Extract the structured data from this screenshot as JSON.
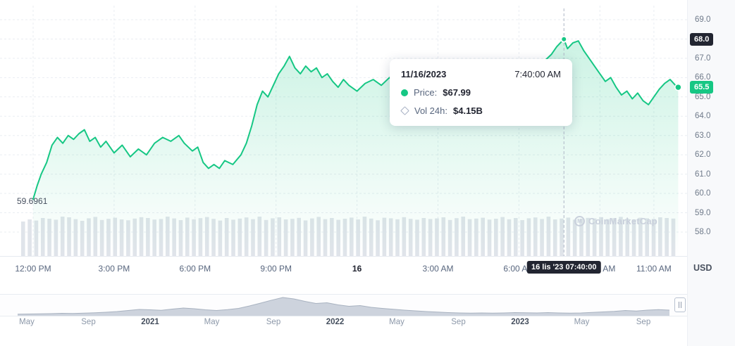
{
  "widget": {
    "currency_label": "USD"
  },
  "tooltip": {
    "date": "11/16/2023",
    "time": "7:40:00 AM",
    "price_label": "Price:",
    "price_value": "$67.99",
    "vol_label": "Vol 24h:",
    "vol_value": "$4.15B"
  },
  "badges": {
    "crosshair_price": "68.0",
    "last_price": "65.5",
    "crosshair_time": "16 lis '23 07:40:00"
  },
  "annotations": {
    "start_price": "59.6961"
  },
  "watermark": {
    "text": "CoinMarketCap",
    "logo_letter": "M"
  },
  "colors": {
    "accent_green": "#16c784",
    "badge_dark": "#222531",
    "grid": "#e9edf2",
    "axis_text": "#58667e",
    "volume_bar": "#e0e4ea",
    "navigator_fill": "#c4cbd7"
  },
  "chart_data": [
    {
      "type": "area",
      "name": "price",
      "title": "",
      "xlabel": "",
      "ylabel": "USD",
      "x_unit": "hours since 2023-11-15 12:00 PM",
      "ylim": [
        56.7,
        69.7
      ],
      "grid": "dashed",
      "legend": "none",
      "y_ticks": [
        69,
        68,
        67,
        66,
        65,
        64,
        63,
        62,
        61,
        60,
        59,
        58
      ],
      "x_ticks": [
        {
          "label": "12:00 PM",
          "t": 0
        },
        {
          "label": "3:00 PM",
          "t": 3
        },
        {
          "label": "6:00 PM",
          "t": 6
        },
        {
          "label": "9:00 PM",
          "t": 9
        },
        {
          "label": "16",
          "t": 12,
          "emphasis": true
        },
        {
          "label": "3:00 AM",
          "t": 15
        },
        {
          "label": "6:00 AM",
          "t": 18
        },
        {
          "label": "9:00 AM",
          "t": 21
        },
        {
          "label": "11:00 AM",
          "t": 23
        }
      ],
      "x": [
        0,
        0.15,
        0.3,
        0.5,
        0.7,
        0.9,
        1.1,
        1.3,
        1.5,
        1.7,
        1.9,
        2.1,
        2.3,
        2.5,
        2.7,
        3,
        3.3,
        3.6,
        3.9,
        4.2,
        4.5,
        4.8,
        5.1,
        5.4,
        5.6,
        5.9,
        6.1,
        6.3,
        6.5,
        6.7,
        6.9,
        7.1,
        7.4,
        7.7,
        7.9,
        8.1,
        8.3,
        8.5,
        8.7,
        8.9,
        9.1,
        9.3,
        9.5,
        9.7,
        9.9,
        10.1,
        10.3,
        10.5,
        10.7,
        10.9,
        11.1,
        11.3,
        11.5,
        11.7,
        12,
        12.3,
        12.6,
        12.9,
        13.2,
        13.5,
        13.8,
        14.1,
        14.4,
        14.7,
        15,
        15.3,
        15.6,
        15.9,
        16.2,
        16.5,
        16.8,
        17.1,
        17.4,
        17.7,
        18,
        18.3,
        18.6,
        18.9,
        19.2,
        19.4,
        19.667,
        19.8,
        20,
        20.2,
        20.4,
        20.6,
        20.8,
        21,
        21.2,
        21.4,
        21.6,
        21.8,
        22,
        22.2,
        22.4,
        22.6,
        22.8,
        23,
        23.2,
        23.4,
        23.6,
        23.8,
        23.9
      ],
      "y": [
        59.7,
        60.4,
        61.0,
        61.6,
        62.5,
        62.9,
        62.6,
        63.0,
        62.8,
        63.1,
        63.3,
        62.7,
        62.9,
        62.4,
        62.7,
        62.1,
        62.5,
        61.9,
        62.3,
        62.0,
        62.6,
        62.9,
        62.7,
        63.0,
        62.6,
        62.2,
        62.4,
        61.6,
        61.3,
        61.5,
        61.3,
        61.7,
        61.5,
        62.0,
        62.6,
        63.5,
        64.6,
        65.3,
        65.0,
        65.6,
        66.2,
        66.6,
        67.1,
        66.5,
        66.2,
        66.6,
        66.3,
        66.5,
        66.0,
        66.2,
        65.8,
        65.5,
        65.9,
        65.6,
        65.3,
        65.7,
        65.9,
        65.6,
        66.0,
        65.8,
        66.1,
        65.9,
        66.2,
        66.0,
        65.7,
        65.9,
        65.6,
        65.8,
        66.0,
        65.7,
        65.9,
        66.1,
        66.3,
        66.0,
        66.2,
        66.5,
        66.4,
        66.8,
        67.2,
        67.6,
        67.99,
        67.5,
        67.8,
        67.9,
        67.4,
        67.0,
        66.6,
        66.2,
        65.8,
        66.0,
        65.5,
        65.1,
        65.3,
        64.9,
        65.2,
        64.8,
        64.6,
        65.0,
        65.4,
        65.7,
        65.9,
        65.6,
        65.5
      ],
      "start_point": {
        "x": 0,
        "y": 59.6961
      },
      "marked_point": {
        "x": 19.667,
        "y": 67.99,
        "time_label": "7:40:00 AM"
      },
      "last_point": {
        "x": 23.9,
        "y": 65.5
      }
    },
    {
      "type": "bar",
      "name": "volume_24h",
      "values_rel": [
        0.55,
        0.7,
        0.62,
        0.8,
        0.75,
        0.68,
        0.9,
        0.85,
        0.72,
        0.6,
        0.78,
        0.88,
        0.66,
        0.74,
        0.82,
        0.7,
        0.64,
        0.76,
        0.86,
        0.8,
        0.69,
        0.73,
        0.9,
        0.77,
        0.65,
        0.83,
        0.71,
        0.79,
        0.87,
        0.74,
        0.62,
        0.8,
        0.68,
        0.76,
        0.84,
        0.72,
        0.9,
        0.66,
        0.78,
        0.85,
        0.7,
        0.74,
        0.81,
        0.63,
        0.77,
        0.88,
        0.72,
        0.8,
        0.67,
        0.75,
        0.83,
        0.7,
        0.9,
        0.76,
        0.64,
        0.82,
        0.78,
        0.71,
        0.86,
        0.74,
        0.68,
        0.8,
        0.73,
        0.77,
        0.85,
        0.66,
        0.79,
        0.9,
        0.72,
        0.76,
        0.82,
        0.69,
        0.75,
        0.87,
        0.71,
        0.8,
        0.65,
        0.78,
        0.84,
        0.73,
        0.9,
        0.7,
        0.76,
        0.83,
        0.68,
        0.74,
        0.81,
        0.77,
        0.86,
        0.72,
        0.79,
        0.88,
        0.75,
        0.7,
        0.82,
        0.78,
        0.73,
        0.85,
        0.8,
        0.76
      ]
    },
    {
      "type": "area",
      "name": "navigator_history",
      "labels": [
        "May",
        "Sep",
        "2021",
        "May",
        "Sep",
        "2022",
        "May",
        "Sep",
        "2023",
        "May",
        "Sep"
      ],
      "year_labels": [
        "2021",
        "2022",
        "2023"
      ],
      "values_rel": [
        0.05,
        0.06,
        0.07,
        0.08,
        0.1,
        0.09,
        0.11,
        0.13,
        0.16,
        0.2,
        0.26,
        0.32,
        0.3,
        0.27,
        0.34,
        0.4,
        0.36,
        0.3,
        0.26,
        0.31,
        0.38,
        0.52,
        0.68,
        0.85,
        1.0,
        0.92,
        0.78,
        0.66,
        0.7,
        0.58,
        0.5,
        0.54,
        0.44,
        0.38,
        0.33,
        0.28,
        0.24,
        0.2,
        0.17,
        0.14,
        0.12,
        0.11,
        0.12,
        0.11,
        0.12,
        0.14,
        0.13,
        0.12,
        0.14,
        0.12,
        0.11,
        0.12,
        0.15,
        0.18,
        0.21,
        0.26,
        0.23,
        0.28,
        0.31,
        0.28
      ]
    }
  ]
}
